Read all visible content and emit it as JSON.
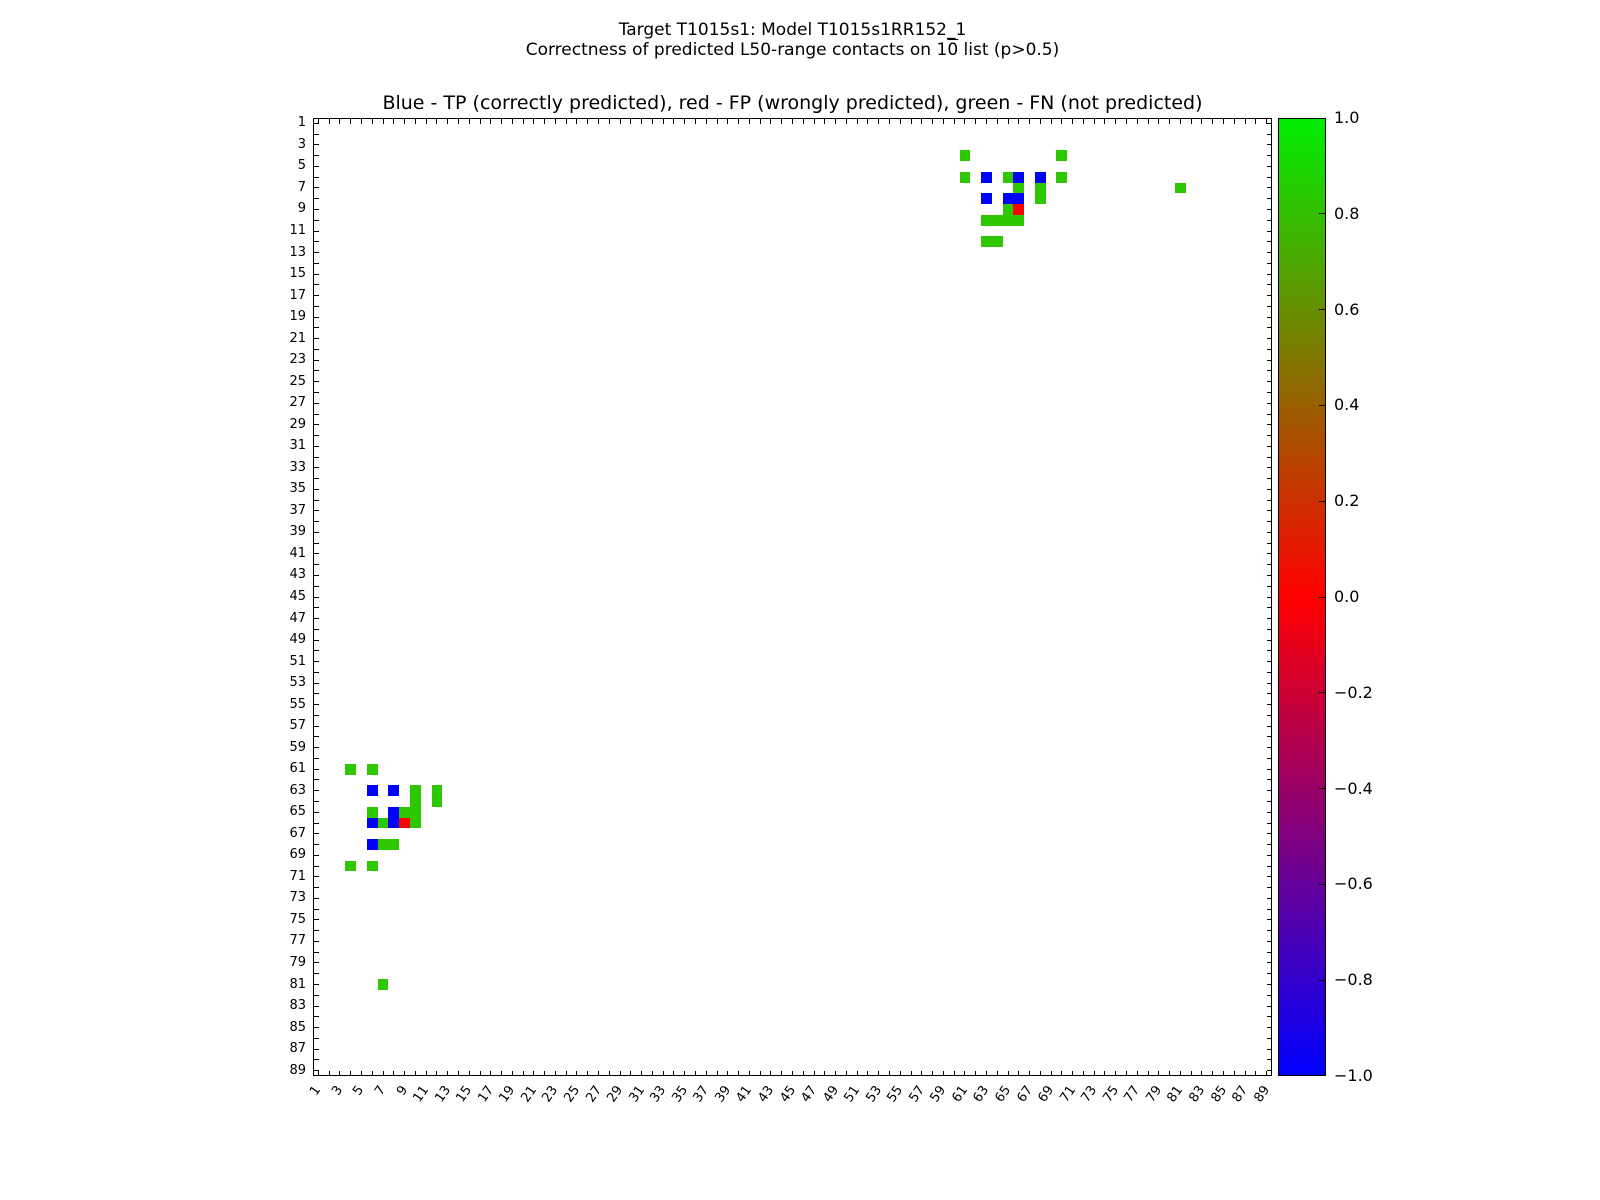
{
  "figure": {
    "suptitle_line1": "Target T1015s1: Model T1015s1RR152_1",
    "suptitle_line2": {
      "pre": "Correctness of predicted L50-range contacts on 1",
      "overlined": "0",
      "post": " list (p>0.5)"
    },
    "axes_title": "Blue - TP (correctly predicted), red - FP (wrongly predicted), green - FN (not predicted)"
  },
  "chart_data": {
    "type": "heatmap",
    "title": "Blue - TP (correctly predicted), red - FP (wrongly predicted), green - FN (not predicted)",
    "description": "Symmetric residue-residue contact map (89x89). Colored unit squares mark contacts; matrix is mirrored across the diagonal.",
    "axis": {
      "min": 1,
      "max": 89,
      "y_inverted": true,
      "tick_every": 1,
      "labeled_every": 2,
      "x_tick_labels": [
        "1",
        "3",
        "5",
        "7",
        "9",
        "11",
        "13",
        "15",
        "17",
        "19",
        "21",
        "23",
        "25",
        "27",
        "29",
        "31",
        "33",
        "35",
        "37",
        "39",
        "41",
        "43",
        "45",
        "47",
        "49",
        "51",
        "53",
        "55",
        "57",
        "59",
        "61",
        "63",
        "65",
        "67",
        "69",
        "71",
        "73",
        "75",
        "77",
        "79",
        "81",
        "83",
        "85",
        "87",
        "89"
      ],
      "y_tick_labels": [
        "1",
        "3",
        "5",
        "7",
        "9",
        "11",
        "13",
        "15",
        "17",
        "19",
        "21",
        "23",
        "25",
        "27",
        "29",
        "31",
        "33",
        "35",
        "37",
        "39",
        "41",
        "43",
        "45",
        "47",
        "49",
        "51",
        "53",
        "55",
        "57",
        "59",
        "61",
        "63",
        "65",
        "67",
        "69",
        "71",
        "73",
        "75",
        "77",
        "79",
        "81",
        "83",
        "85",
        "87",
        "89"
      ]
    },
    "classes": {
      "TP": {
        "label": "TP (correctly predicted)",
        "color": "#0000ff"
      },
      "FP": {
        "label": "FP (wrongly predicted)",
        "color": "#ff0000"
      },
      "FN": {
        "label": "FN (not predicted)",
        "color": "#2dc800"
      }
    },
    "symmetric": true,
    "contacts": [
      {
        "i": 4,
        "j": 61,
        "cls": "FN"
      },
      {
        "i": 4,
        "j": 70,
        "cls": "FN"
      },
      {
        "i": 6,
        "j": 61,
        "cls": "FN"
      },
      {
        "i": 6,
        "j": 63,
        "cls": "TP"
      },
      {
        "i": 6,
        "j": 65,
        "cls": "FN"
      },
      {
        "i": 6,
        "j": 66,
        "cls": "TP"
      },
      {
        "i": 6,
        "j": 68,
        "cls": "TP"
      },
      {
        "i": 6,
        "j": 70,
        "cls": "FN"
      },
      {
        "i": 7,
        "j": 66,
        "cls": "FN"
      },
      {
        "i": 7,
        "j": 68,
        "cls": "FN"
      },
      {
        "i": 7,
        "j": 81,
        "cls": "FN"
      },
      {
        "i": 8,
        "j": 63,
        "cls": "TP"
      },
      {
        "i": 8,
        "j": 65,
        "cls": "TP"
      },
      {
        "i": 8,
        "j": 66,
        "cls": "TP"
      },
      {
        "i": 8,
        "j": 68,
        "cls": "FN"
      },
      {
        "i": 9,
        "j": 65,
        "cls": "FN"
      },
      {
        "i": 9,
        "j": 66,
        "cls": "FP"
      },
      {
        "i": 10,
        "j": 63,
        "cls": "FN"
      },
      {
        "i": 10,
        "j": 64,
        "cls": "FN"
      },
      {
        "i": 10,
        "j": 65,
        "cls": "FN"
      },
      {
        "i": 10,
        "j": 66,
        "cls": "FN"
      },
      {
        "i": 12,
        "j": 63,
        "cls": "FN"
      },
      {
        "i": 12,
        "j": 64,
        "cls": "FN"
      }
    ],
    "colorbar": {
      "vmin": -1.0,
      "vmax": 1.0,
      "tick_labels": [
        "1.0",
        "0.8",
        "0.6",
        "0.4",
        "0.2",
        "0.0",
        "−0.2",
        "−0.4",
        "−0.6",
        "−0.8",
        "−1.0"
      ],
      "stops": [
        {
          "v": 1.0,
          "color": "#00ee00"
        },
        {
          "v": 0.0,
          "color": "#ff0000"
        },
        {
          "v": -1.0,
          "color": "#0000ff"
        }
      ]
    }
  }
}
